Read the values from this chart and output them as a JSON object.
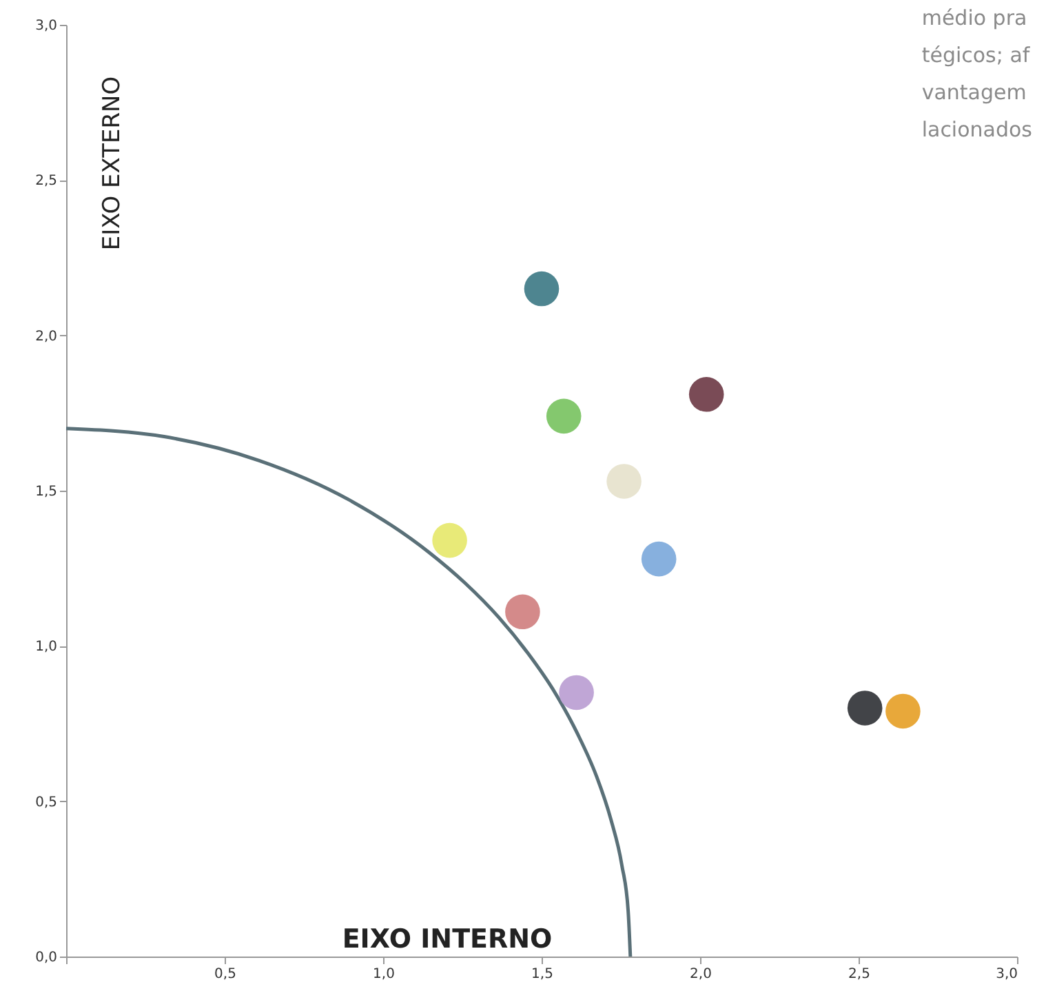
{
  "chart_data": {
    "type": "scatter",
    "xlabel": "EIXO INTERNO",
    "ylabel": "EIXO EXTERNO",
    "annotations": [
      "médio pra",
      "tégicos; af",
      "vantagem",
      "lacionados"
    ],
    "xlim": [
      0,
      3
    ],
    "ylim": [
      0,
      3
    ],
    "xticks": [
      {
        "value": 0,
        "label": null
      },
      {
        "value": 0.5,
        "label": "0,5"
      },
      {
        "value": 1,
        "label": "1,0"
      },
      {
        "value": 1.5,
        "label": "1,5"
      },
      {
        "value": 2,
        "label": "2,0"
      },
      {
        "value": 2.5,
        "label": "2,5"
      },
      {
        "value": 3,
        "label": "3,0"
      }
    ],
    "yticks": [
      {
        "value": 0,
        "label": "0,0"
      },
      {
        "value": 0.5,
        "label": "0,5"
      },
      {
        "value": 1,
        "label": "1,0"
      },
      {
        "value": 1.5,
        "label": "1,5"
      },
      {
        "value": 2,
        "label": "2,0"
      },
      {
        "value": 2.5,
        "label": "2,5"
      },
      {
        "value": 3,
        "label": "3,0"
      }
    ],
    "grid": false,
    "series": [
      {
        "type": "line",
        "color": "#5a7078",
        "line_style": "solid",
        "x": [
          0,
          0.309,
          0.609,
          0.89,
          1.144,
          1.259,
          1.364,
          1.458,
          1.542,
          1.613,
          1.673,
          1.719,
          1.753,
          1.773,
          1.78
        ],
        "values": [
          1.7,
          1.674,
          1.597,
          1.472,
          1.302,
          1.202,
          1.093,
          0.975,
          0.85,
          0.718,
          0.581,
          0.44,
          0.295,
          0.148,
          0
        ]
      },
      {
        "marker": "circle",
        "x": [
          1.5,
          1.57,
          2.02,
          1.76,
          1.21,
          1.87,
          1.44,
          1.61,
          2.52,
          2.64
        ],
        "values": [
          2.15,
          1.74,
          1.81,
          1.53,
          1.34,
          1.28,
          1.11,
          0.85,
          0.8,
          0.79
        ],
        "colors": [
          "#4e8590",
          "#84c86e",
          "#7a4b56",
          "#e8e4d0",
          "#e8ea78",
          "#87b0de",
          "#d48a8a",
          "#c0a6d6",
          "#424448",
          "#e8a83a"
        ]
      }
    ]
  }
}
